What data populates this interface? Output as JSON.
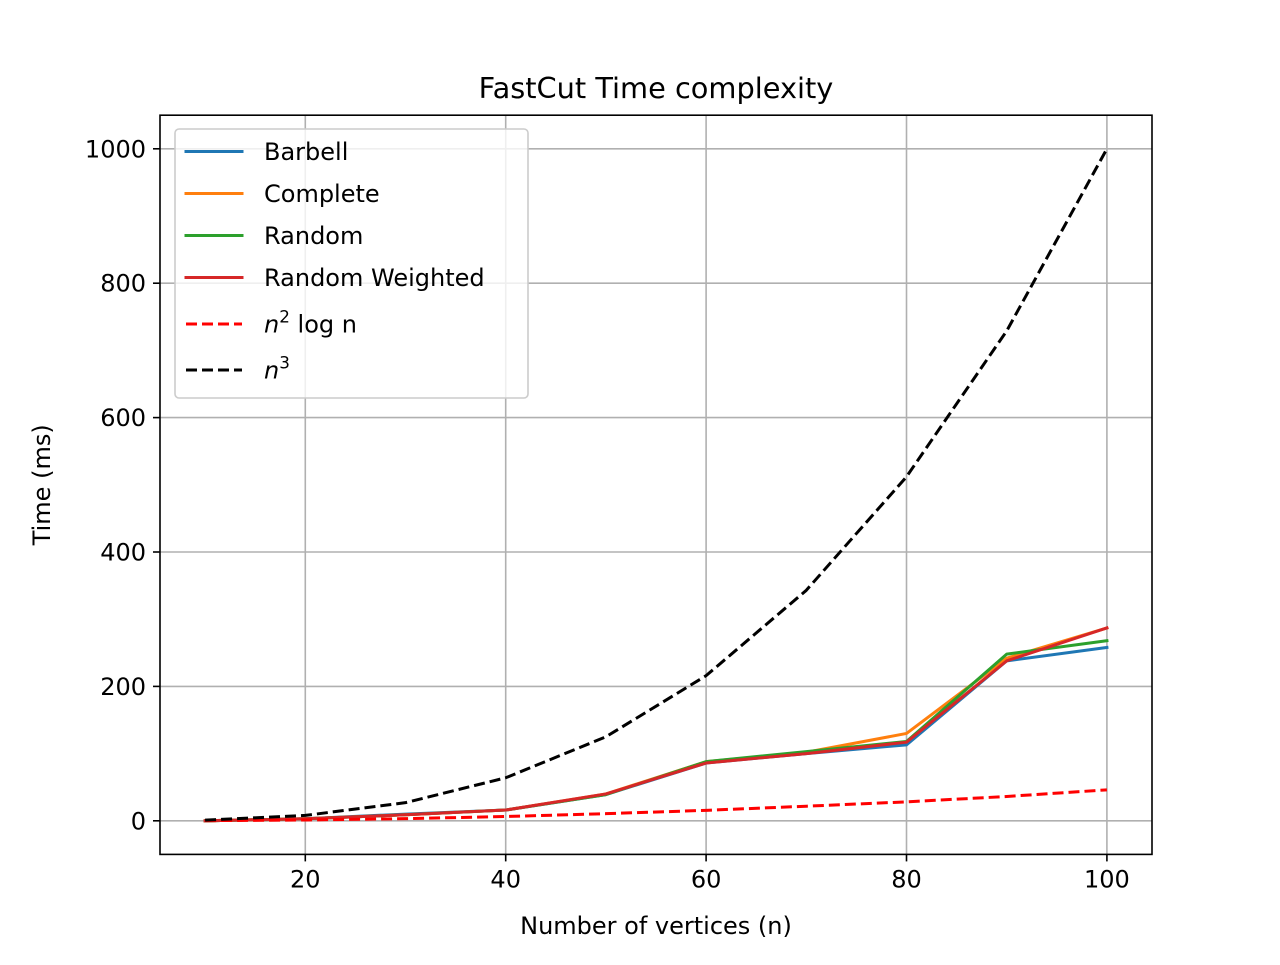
{
  "chart_data": {
    "type": "line",
    "title": "FastCut Time complexity",
    "xlabel": "Number of vertices (n)",
    "ylabel": "Time (ms)",
    "xlim": [
      5.5,
      104.5
    ],
    "ylim": [
      -50,
      1050
    ],
    "xticks": [
      20,
      40,
      60,
      80,
      100
    ],
    "yticks": [
      0,
      200,
      400,
      600,
      800,
      1000
    ],
    "grid": true,
    "legend_position": "top-left",
    "x": [
      10,
      20,
      30,
      40,
      50,
      60,
      70,
      80,
      90,
      100
    ],
    "series": [
      {
        "name": "Barbell",
        "color": "#1f77b4",
        "style": "solid",
        "values": [
          0,
          3,
          10,
          16,
          39,
          86,
          100,
          113,
          238,
          258
        ]
      },
      {
        "name": "Complete",
        "color": "#ff7f0e",
        "style": "solid",
        "values": [
          0,
          3,
          9,
          16,
          40,
          88,
          102,
          130,
          242,
          287
        ]
      },
      {
        "name": "Random",
        "color": "#2ca02c",
        "style": "solid",
        "values": [
          0,
          3,
          9,
          16,
          39,
          88,
          103,
          118,
          248,
          268
        ]
      },
      {
        "name": "Random Weighted",
        "color": "#d62728",
        "style": "solid",
        "values": [
          0,
          3,
          9,
          16,
          40,
          86,
          100,
          117,
          238,
          287
        ]
      },
      {
        "name_base": "n",
        "name_sup": "2",
        "name_rest": " log n",
        "color": "#ff0000",
        "style": "dashed",
        "values": [
          0.2,
          1.2,
          3.2,
          6.4,
          10.6,
          15.6,
          21.7,
          28.2,
          36.2,
          46.1
        ]
      },
      {
        "name_base": "n",
        "name_sup": "3",
        "name_rest": "",
        "color": "#000000",
        "style": "dashed",
        "values": [
          1,
          8,
          27,
          64,
          125,
          216,
          343,
          512,
          729,
          1000
        ]
      }
    ]
  }
}
